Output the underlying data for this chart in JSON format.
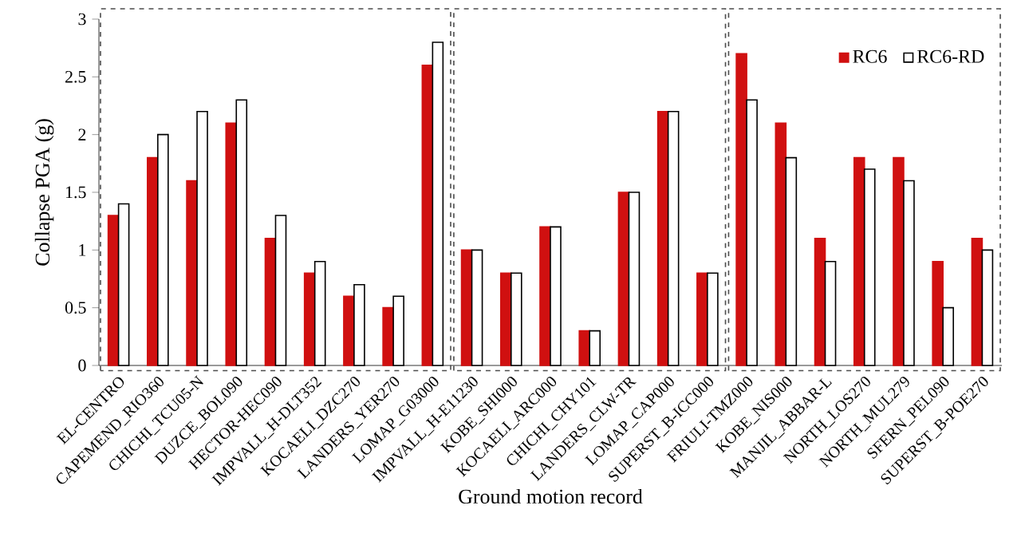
{
  "chart_data": {
    "type": "bar",
    "xlabel": "Ground motion record",
    "ylabel": "Collapse PGA (g)",
    "categories": [
      "EL-CENTRO",
      "CAPEMEND_RIO360",
      "CHICHI_TCU05-N",
      "DUZCE_BOL090",
      "HECTOR-HEC090",
      "IMPVALL_H-DLT352",
      "KOCAELI_DZC270",
      "LANDERS_YER270",
      "LOMAP_G03000",
      "IMPVALL_H-E11230",
      "KOBE_SHI000",
      "KOCAELI_ARC000",
      "CHICHI_CHY101",
      "LANDERS_CLW-TR",
      "LOMAP_CAP000",
      "SUPERST_B-ICC000",
      "FRIULI-TMZ000",
      "KOBE_NIS000",
      "MANJIL_ABBAR-L",
      "NORTH_LOS270",
      "NORTH_MUL279",
      "SFERN_PEL090",
      "SUPERST_B-POE270"
    ],
    "series": [
      {
        "name": "RC6",
        "color": "#d01010",
        "values": [
          1.3,
          1.8,
          1.6,
          2.1,
          1.1,
          0.8,
          0.6,
          0.5,
          2.6,
          1.0,
          0.8,
          1.2,
          0.3,
          1.5,
          2.2,
          0.8,
          2.7,
          2.1,
          1.1,
          1.8,
          1.8,
          0.9,
          1.1
        ]
      },
      {
        "name": "RC6-RD",
        "color": "#ffffff",
        "values": [
          1.4,
          2.0,
          2.2,
          2.3,
          1.3,
          0.9,
          0.7,
          0.6,
          2.8,
          1.0,
          0.8,
          1.2,
          0.3,
          1.5,
          2.2,
          0.8,
          2.3,
          1.8,
          0.9,
          1.7,
          1.6,
          0.5,
          1.0
        ]
      }
    ],
    "ylim": [
      0,
      3
    ],
    "yticks": [
      0,
      0.5,
      1,
      1.5,
      2,
      2.5,
      3
    ],
    "legend": "top right"
  }
}
